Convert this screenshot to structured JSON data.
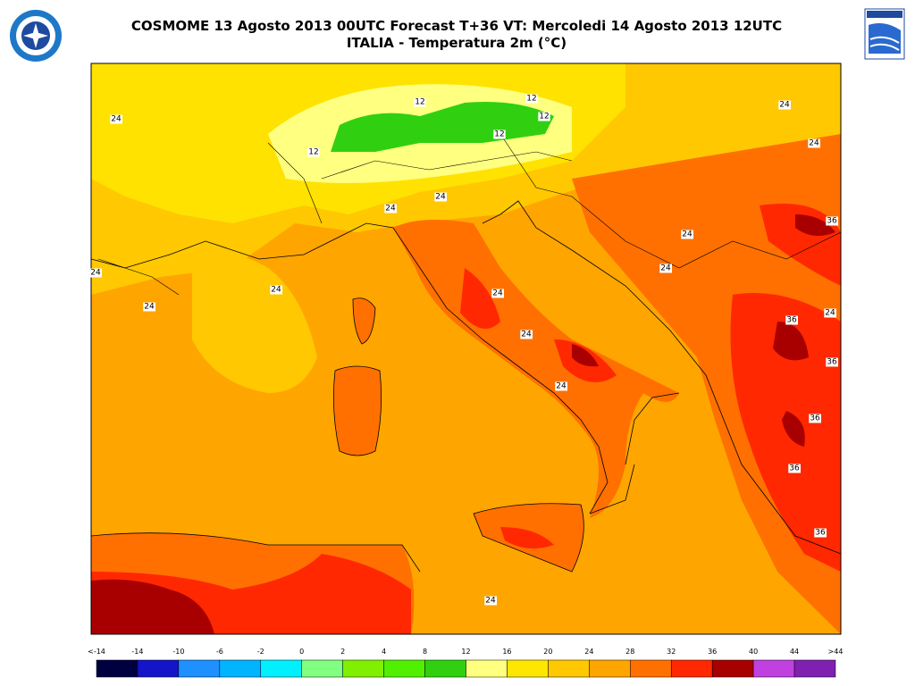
{
  "header": {
    "title_line1": "COSMOME 13 Agosto 2013 00UTC Forecast T+36 VT: Mercoledi 14 Agosto 2013 12UTC",
    "title_line2": "ITALIA - Temperatura 2m (°C)"
  },
  "map": {
    "contour_labels": [
      24,
      12,
      12,
      12,
      12,
      12,
      24,
      24,
      24,
      24,
      24,
      24,
      24,
      24,
      24,
      24,
      24,
      24,
      24,
      36,
      36,
      36,
      36,
      36,
      36,
      24
    ]
  },
  "colorbar": {
    "labels": [
      "<-14",
      -14,
      -10,
      -6,
      -2,
      0,
      2,
      4,
      8,
      12,
      16,
      20,
      24,
      28,
      32,
      36,
      40,
      44,
      ">44"
    ],
    "colors": [
      "#000040",
      "#1414c8",
      "#1e90ff",
      "#00b4ff",
      "#00f0ff",
      "#80ff80",
      "#80f000",
      "#50f000",
      "#30d010",
      "#ffff80",
      "#ffe600",
      "#ffc800",
      "#ffa500",
      "#ff7000",
      "#ff2800",
      "#a80000",
      "#c040e0",
      "#8020b0"
    ]
  }
}
